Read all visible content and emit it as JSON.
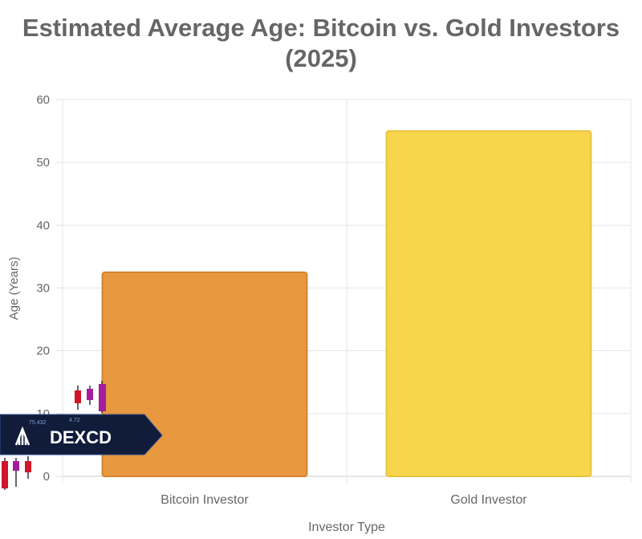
{
  "title_line1": "Estimated Average Age: Bitcoin vs. Gold Investors",
  "title_line2": "(2025)",
  "chart_data": {
    "type": "bar",
    "categories": [
      "Bitcoin Investor",
      "Gold Investor"
    ],
    "values": [
      32.5,
      55
    ],
    "colors": [
      "#e8983f",
      "#f7d54c"
    ],
    "border_colors": [
      "#d6832e",
      "#e8c33e"
    ],
    "xlabel": "Investor Type",
    "ylabel": "Age (Years)",
    "ylim": [
      0,
      60
    ],
    "yticks": [
      "0",
      "10",
      "20",
      "30",
      "40",
      "50",
      "60"
    ],
    "grid": true
  },
  "watermark": {
    "label": "DEXCD",
    "ticker_values": [
      "75.432",
      "4.72"
    ]
  }
}
